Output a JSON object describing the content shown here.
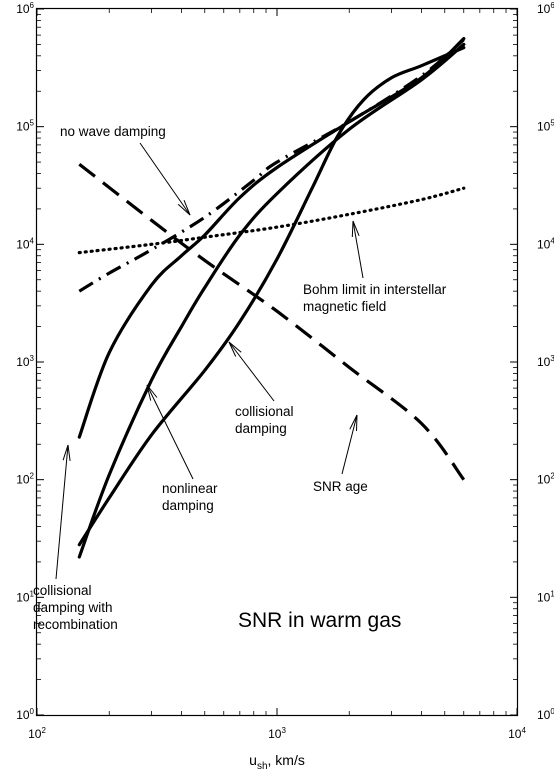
{
  "chart_data": {
    "type": "line",
    "title": "",
    "xlabel": {
      "main": "u",
      "sub": "sh",
      "rest": ", km/s"
    },
    "ylabel": "",
    "x_scale": "log",
    "y_scale": "log",
    "xlim": [
      100,
      10000
    ],
    "ylim": [
      1,
      1000000
    ],
    "grid": false,
    "x_ticks": [
      {
        "value": 100,
        "base": "10",
        "exp": "2"
      },
      {
        "value": 1000,
        "base": "10",
        "exp": "3"
      },
      {
        "value": 10000,
        "base": "10",
        "exp": "4"
      }
    ],
    "y_ticks": [
      {
        "value": 1,
        "base": "10",
        "exp": "0"
      },
      {
        "value": 10,
        "base": "10",
        "exp": "1"
      },
      {
        "value": 100,
        "base": "10",
        "exp": "2"
      },
      {
        "value": 1000,
        "base": "10",
        "exp": "3"
      },
      {
        "value": 10000,
        "base": "10",
        "exp": "4"
      },
      {
        "value": 100000,
        "base": "10",
        "exp": "5"
      },
      {
        "value": 1000000,
        "base": "10",
        "exp": "6"
      }
    ],
    "series": [
      {
        "id": "no-wave-damping",
        "style": "dash-dot",
        "x": [
          150,
          200,
          300,
          500,
          800,
          1000,
          2000,
          4000,
          6000
        ],
        "y": [
          4000,
          5700,
          9000,
          17000,
          35000,
          50000,
          110000,
          270000,
          550000
        ]
      },
      {
        "id": "bohm-limit",
        "style": "dotted",
        "x": [
          150,
          300,
          500,
          1000,
          2000,
          4000,
          6000
        ],
        "y": [
          8500,
          10000,
          11500,
          14000,
          18000,
          24000,
          30000
        ]
      },
      {
        "id": "snr-age",
        "style": "dashed",
        "x": [
          150,
          300,
          500,
          1000,
          2000,
          4000,
          6000
        ],
        "y": [
          48000,
          16000,
          7300,
          2700,
          900,
          300,
          100
        ]
      },
      {
        "id": "collisional-damping-with-recombination",
        "style": "solid",
        "x": [
          150,
          200,
          300,
          400,
          500,
          700,
          1000,
          2000,
          4000,
          6000
        ],
        "y": [
          230,
          1200,
          4500,
          8000,
          12000,
          25000,
          45000,
          110000,
          260000,
          560000
        ]
      },
      {
        "id": "nonlinear-damping",
        "style": "solid",
        "x": [
          150,
          200,
          300,
          400,
          500,
          700,
          1000,
          2000,
          4000,
          6000
        ],
        "y": [
          22,
          110,
          700,
          2000,
          4300,
          12000,
          27000,
          95000,
          250000,
          500000
        ]
      },
      {
        "id": "collisional-damping",
        "style": "solid",
        "x": [
          150,
          200,
          300,
          500,
          700,
          1000,
          1400,
          1800,
          2300,
          3000,
          4000,
          6000
        ],
        "y": [
          28,
          70,
          240,
          850,
          2200,
          7500,
          30000,
          85000,
          170000,
          260000,
          330000,
          470000
        ]
      }
    ],
    "annotations": [
      {
        "id": "no-wave-damping",
        "text": [
          "no wave damping"
        ]
      },
      {
        "id": "bohm-limit",
        "text": [
          "Bohm limit in interstellar",
          "magnetic field"
        ]
      },
      {
        "id": "collisional-damping",
        "text": [
          "collisional",
          "damping"
        ]
      },
      {
        "id": "nonlinear-damping",
        "text": [
          "nonlinear",
          "damping"
        ]
      },
      {
        "id": "snr-age",
        "text": [
          "SNR age"
        ]
      },
      {
        "id": "collisional-damping-with-recombination",
        "text": [
          "collisional",
          "damping with",
          "recombination"
        ]
      },
      {
        "id": "snr-in-warm-gas",
        "text": [
          "SNR in warm gas"
        ]
      }
    ]
  }
}
